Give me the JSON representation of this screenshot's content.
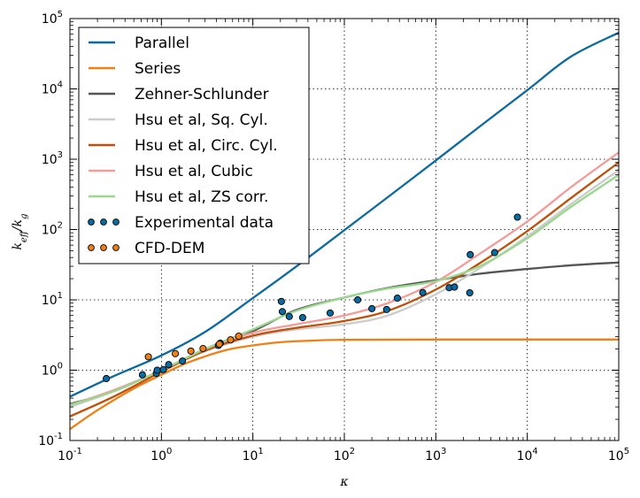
{
  "chart_data": {
    "type": "line",
    "xlabel": "κ",
    "ylabel_main": "k",
    "ylabel_num_sub": "eff",
    "ylabel_den_sub": "g",
    "xscale": "log",
    "yscale": "log",
    "xlim": [
      0.1,
      100000
    ],
    "ylim": [
      0.1,
      100000
    ],
    "grid": true,
    "legend_position": "upper-left",
    "x_ticks": [
      {
        "base": "10",
        "exp": "-1",
        "value": 0.1
      },
      {
        "base": "10",
        "exp": "0",
        "value": 1
      },
      {
        "base": "10",
        "exp": "1",
        "value": 10
      },
      {
        "base": "10",
        "exp": "2",
        "value": 100
      },
      {
        "base": "10",
        "exp": "3",
        "value": 1000
      },
      {
        "base": "10",
        "exp": "4",
        "value": 10000
      },
      {
        "base": "10",
        "exp": "5",
        "value": 100000
      }
    ],
    "y_ticks": [
      {
        "base": "10",
        "exp": "-1",
        "value": 0.1
      },
      {
        "base": "10",
        "exp": "0",
        "value": 1
      },
      {
        "base": "10",
        "exp": "1",
        "value": 10
      },
      {
        "base": "10",
        "exp": "2",
        "value": 100
      },
      {
        "base": "10",
        "exp": "3",
        "value": 1000
      },
      {
        "base": "10",
        "exp": "4",
        "value": 10000
      },
      {
        "base": "10",
        "exp": "5",
        "value": 100000
      }
    ],
    "series": [
      {
        "name": "Parallel",
        "kind": "line",
        "color": "#0a6aa1",
        "x": [
          0.1,
          0.3,
          1,
          3,
          10,
          30,
          100,
          300,
          1000,
          3000,
          10000,
          30000,
          100000
        ],
        "y": [
          0.42,
          0.82,
          1.62,
          3.5,
          10.6,
          30,
          98,
          290,
          960,
          2900,
          9600,
          28800,
          63000
        ]
      },
      {
        "name": "Series",
        "kind": "line",
        "color": "#f07f16",
        "x": [
          0.1,
          0.2,
          0.5,
          1,
          2,
          5,
          10,
          20,
          50,
          100,
          1000,
          10000,
          100000
        ],
        "y": [
          0.145,
          0.27,
          0.55,
          0.86,
          1.3,
          1.92,
          2.25,
          2.5,
          2.65,
          2.7,
          2.73,
          2.73,
          2.73
        ]
      },
      {
        "name": "Zehner-Schlunder",
        "kind": "line",
        "color": "#555555",
        "x": [
          0.1,
          0.3,
          1,
          3,
          10,
          30,
          100,
          300,
          1000,
          3000,
          10000,
          30000,
          100000
        ],
        "y": [
          0.33,
          0.5,
          1.0,
          1.9,
          3.6,
          7.2,
          10.8,
          14.8,
          19,
          23.5,
          27.5,
          31,
          34
        ]
      },
      {
        "name": "Hsu et al, Sq. Cyl.",
        "kind": "line",
        "color": "#cccccc",
        "x": [
          0.1,
          0.3,
          1,
          3,
          10,
          30,
          100,
          300,
          1000,
          3000,
          10000,
          30000,
          100000
        ],
        "y": [
          0.3,
          0.5,
          1.0,
          1.85,
          3.0,
          3.8,
          4.5,
          6.0,
          12,
          28,
          80,
          230,
          700
        ]
      },
      {
        "name": "Hsu et al, Circ. Cyl.",
        "kind": "line",
        "color": "#c04f0a",
        "x": [
          0.1,
          0.3,
          1,
          3,
          10,
          30,
          100,
          300,
          1000,
          3000,
          10000,
          30000,
          100000
        ],
        "y": [
          0.22,
          0.42,
          0.95,
          1.9,
          3.1,
          4.0,
          5.0,
          7.0,
          14,
          33,
          95,
          280,
          900
        ]
      },
      {
        "name": "Hsu et al, Cubic",
        "kind": "line",
        "color": "#f39c98",
        "x": [
          0.1,
          0.3,
          1,
          3,
          10,
          30,
          100,
          300,
          1000,
          3000,
          10000,
          30000,
          100000
        ],
        "y": [
          0.32,
          0.52,
          1.0,
          2.0,
          3.4,
          4.5,
          6.0,
          9.0,
          18,
          45,
          130,
          400,
          1250
        ]
      },
      {
        "name": "Hsu et al, ZS corr.",
        "kind": "line",
        "color": "#98d98e",
        "x": [
          0.1,
          0.3,
          1,
          3,
          10,
          30,
          100,
          300,
          1000,
          3000,
          10000,
          30000,
          100000
        ],
        "y": [
          0.32,
          0.5,
          1.0,
          2.0,
          3.8,
          7.0,
          10.8,
          14.5,
          18.5,
          30,
          75,
          210,
          600
        ]
      },
      {
        "name": "Experimental data",
        "kind": "scatter",
        "color": "#0a6aa1",
        "x": [
          0.25,
          0.62,
          0.88,
          0.9,
          1.05,
          1.2,
          1.7,
          4.2,
          4.4,
          20.5,
          21,
          25,
          35,
          70,
          140,
          200,
          290,
          380,
          720,
          1400,
          1600,
          2350,
          2380,
          4400,
          7800
        ],
        "y": [
          0.76,
          0.86,
          0.9,
          1.0,
          1.02,
          1.2,
          1.35,
          2.25,
          2.42,
          9.5,
          6.8,
          5.8,
          5.6,
          6.5,
          10,
          7.5,
          7.3,
          10.6,
          12.7,
          14.9,
          15.2,
          12.6,
          44,
          47,
          150
        ]
      },
      {
        "name": "CFD-DEM",
        "kind": "scatter",
        "color": "#f07f16",
        "x": [
          0.72,
          1.42,
          2.1,
          2.85,
          4.3,
          5.7,
          7.0
        ],
        "y": [
          1.55,
          1.72,
          1.87,
          2.03,
          2.35,
          2.7,
          3.05
        ]
      }
    ]
  }
}
